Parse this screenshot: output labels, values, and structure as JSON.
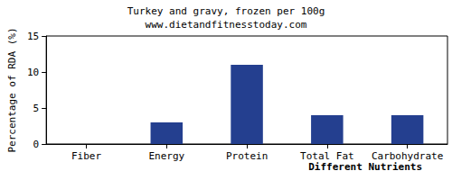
{
  "chart_data": {
    "type": "bar",
    "title": "Turkey and gravy, frozen per 100g",
    "subtitle": "www.dietandfitnesstoday.com",
    "x_label": "Different Nutrients",
    "y_label": "Percentage of RDA (%)",
    "categories": [
      "Fiber",
      "Energy",
      "Protein",
      "Total Fat",
      "Carbohydrate"
    ],
    "values": [
      0,
      3,
      11,
      4,
      4
    ],
    "color": "#243f8f",
    "ylim": [
      0,
      15
    ],
    "yticks": [
      0,
      5,
      10,
      15
    ],
    "grid": false
  }
}
